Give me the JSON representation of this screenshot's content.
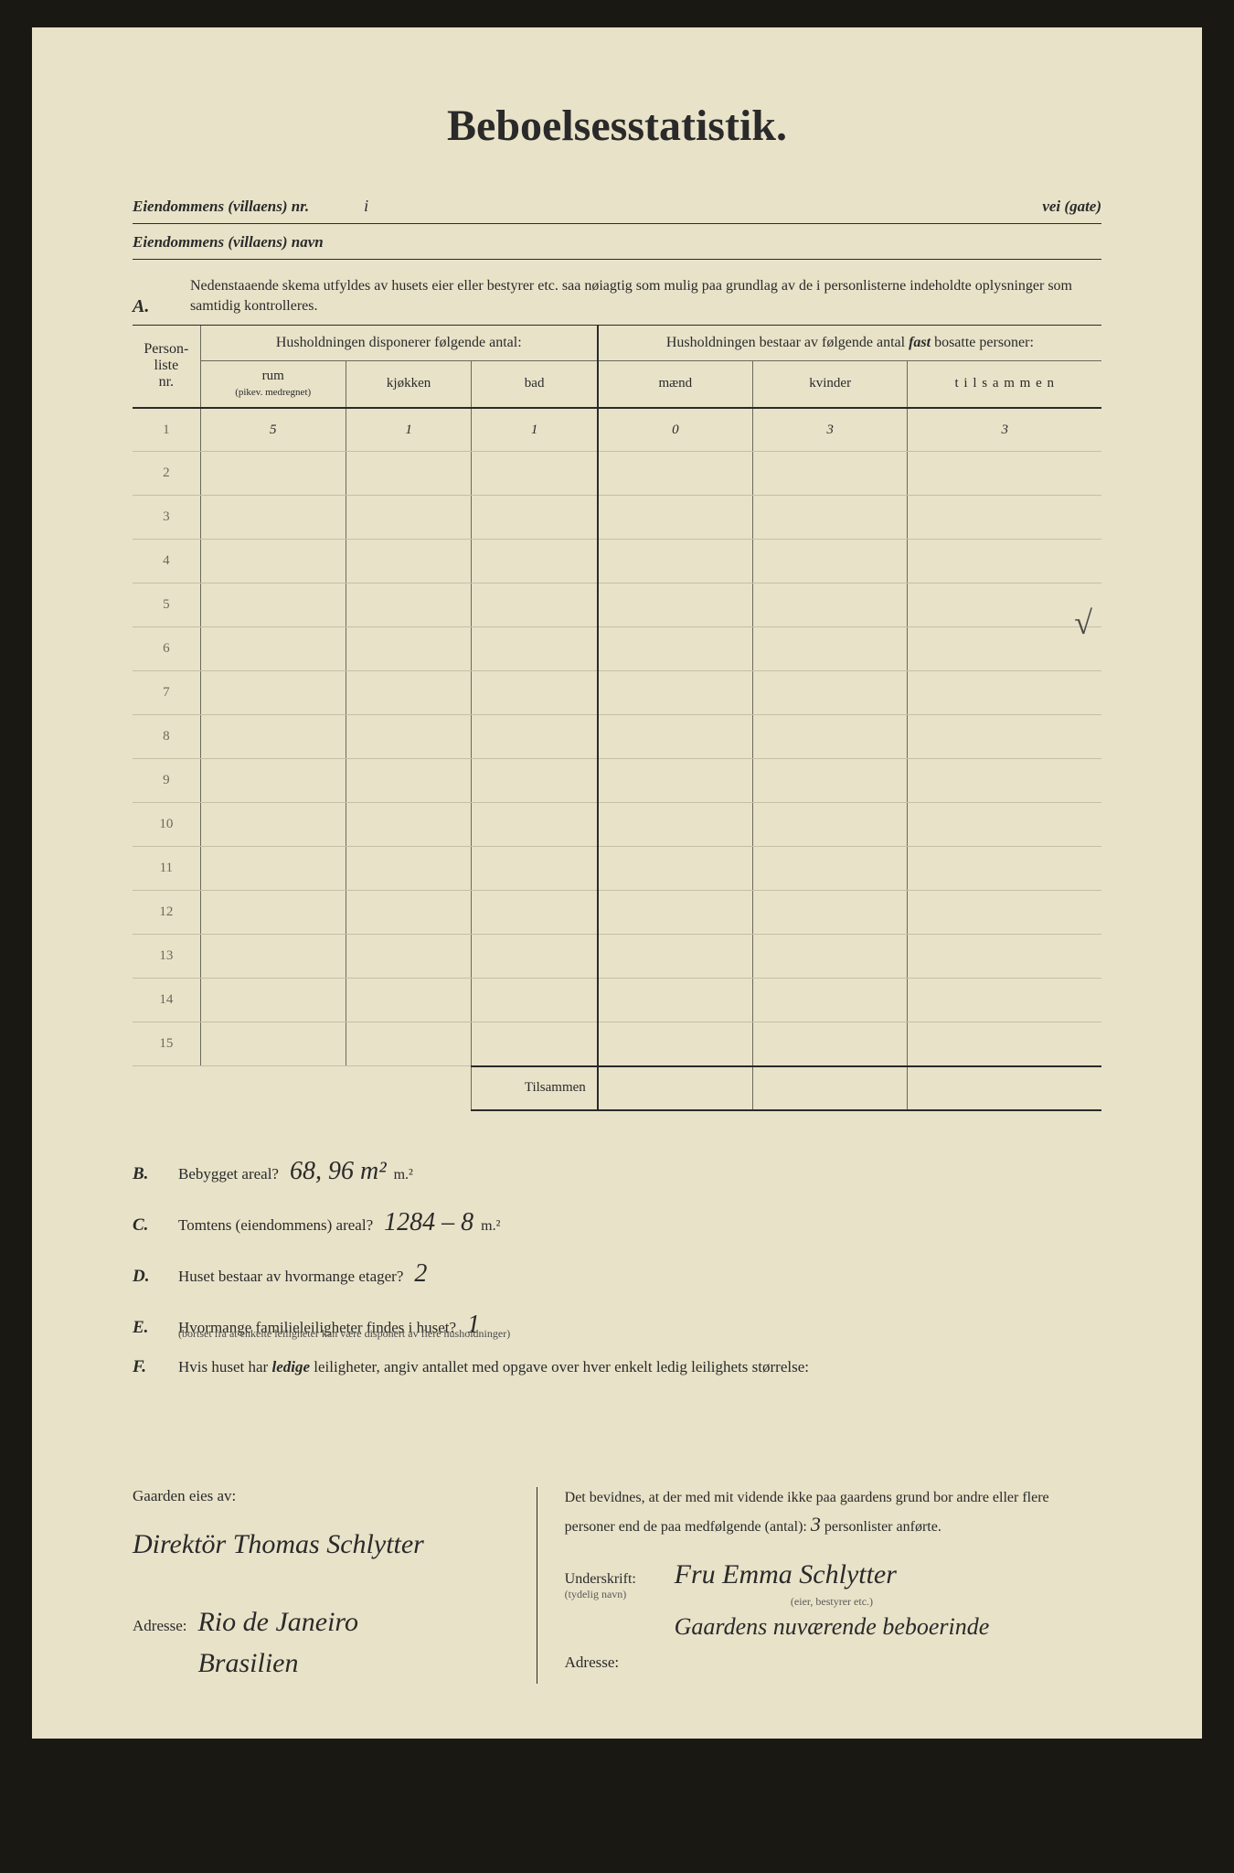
{
  "title": "Beboelsesstatistik.",
  "header": {
    "line1_label": "Eiendommens (villaens) nr.",
    "line1_value": "i",
    "line1_right": "vei (gate)",
    "line2_label": "Eiendommens (villaens) navn"
  },
  "sectionA": {
    "letter": "A.",
    "instructions": "Nedenstaaende skema utfyldes av husets eier eller bestyrer etc. saa nøiagtig som mulig paa grundlag av de i personlisterne indeholdte oplysninger som samtidig kontrolleres.",
    "col_nr_1": "Person-",
    "col_nr_2": "liste",
    "col_nr_3": "nr.",
    "group1": "Husholdningen disponerer følgende antal:",
    "group2_pre": "Husholdningen bestaar av følgende antal ",
    "group2_fast": "fast",
    "group2_post": " bosatte personer:",
    "col_rum": "rum",
    "col_rum_sub": "(pikev. medregnet)",
    "col_kjokken": "kjøkken",
    "col_bad": "bad",
    "col_maend": "mænd",
    "col_kvinder": "kvinder",
    "col_tilsammen": "t i l s a m m e n",
    "tilsammen_label": "Tilsammen"
  },
  "rows": [
    {
      "nr": "1",
      "rum": "5",
      "kjokken": "1",
      "bad": "1",
      "maend": "0",
      "kvinder": "3",
      "tilsammen": "3"
    },
    {
      "nr": "2",
      "rum": "",
      "kjokken": "",
      "bad": "",
      "maend": "",
      "kvinder": "",
      "tilsammen": ""
    },
    {
      "nr": "3",
      "rum": "",
      "kjokken": "",
      "bad": "",
      "maend": "",
      "kvinder": "",
      "tilsammen": ""
    },
    {
      "nr": "4",
      "rum": "",
      "kjokken": "",
      "bad": "",
      "maend": "",
      "kvinder": "",
      "tilsammen": ""
    },
    {
      "nr": "5",
      "rum": "",
      "kjokken": "",
      "bad": "",
      "maend": "",
      "kvinder": "",
      "tilsammen": ""
    },
    {
      "nr": "6",
      "rum": "",
      "kjokken": "",
      "bad": "",
      "maend": "",
      "kvinder": "",
      "tilsammen": ""
    },
    {
      "nr": "7",
      "rum": "",
      "kjokken": "",
      "bad": "",
      "maend": "",
      "kvinder": "",
      "tilsammen": ""
    },
    {
      "nr": "8",
      "rum": "",
      "kjokken": "",
      "bad": "",
      "maend": "",
      "kvinder": "",
      "tilsammen": ""
    },
    {
      "nr": "9",
      "rum": "",
      "kjokken": "",
      "bad": "",
      "maend": "",
      "kvinder": "",
      "tilsammen": ""
    },
    {
      "nr": "10",
      "rum": "",
      "kjokken": "",
      "bad": "",
      "maend": "",
      "kvinder": "",
      "tilsammen": ""
    },
    {
      "nr": "11",
      "rum": "",
      "kjokken": "",
      "bad": "",
      "maend": "",
      "kvinder": "",
      "tilsammen": ""
    },
    {
      "nr": "12",
      "rum": "",
      "kjokken": "",
      "bad": "",
      "maend": "",
      "kvinder": "",
      "tilsammen": ""
    },
    {
      "nr": "13",
      "rum": "",
      "kjokken": "",
      "bad": "",
      "maend": "",
      "kvinder": "",
      "tilsammen": ""
    },
    {
      "nr": "14",
      "rum": "",
      "kjokken": "",
      "bad": "",
      "maend": "",
      "kvinder": "",
      "tilsammen": ""
    },
    {
      "nr": "15",
      "rum": "",
      "kjokken": "",
      "bad": "",
      "maend": "",
      "kvinder": "",
      "tilsammen": ""
    }
  ],
  "questions": {
    "B": {
      "letter": "B.",
      "text": "Bebygget areal?",
      "answer": "68, 96 m²",
      "unit": "m.²"
    },
    "C": {
      "letter": "C.",
      "text": "Tomtens (eiendommens) areal?",
      "answer": "1284 –   8",
      "unit": "m.²"
    },
    "D": {
      "letter": "D.",
      "text": "Huset bestaar av hvormange etager?",
      "answer": "2",
      "unit": ""
    },
    "E": {
      "letter": "E.",
      "text": "Hvormange familieleiligheter findes i huset?",
      "answer": "1",
      "unit": "",
      "sub": "(bortset fra at enkelte leiligheter kan være disponert av flere husholdninger)"
    },
    "F": {
      "letter": "F.",
      "text_pre": "Hvis huset har ",
      "text_em": "ledige",
      "text_post": " leiligheter, angiv antallet med opgave over hver enkelt ledig leilighets størrelse:"
    }
  },
  "footer": {
    "left_label": "Gaarden eies av:",
    "owner": "Direktör Thomas Schlytter",
    "addr_label": "Adresse:",
    "owner_addr1": "Rio de Janeiro",
    "owner_addr2": "Brasilien",
    "attest_pre": "Det bevidnes, at der med mit vidende ikke paa gaardens grund bor andre eller flere personer end de paa medfølgende (antal): ",
    "attest_count": "3",
    "attest_post": " personlister anførte.",
    "sig_label": "Underskrift:",
    "sig_sub1": "(tydelig navn)",
    "sig_sub2": "(eier, bestyrer etc.)",
    "signature": "Fru Emma Schlytter",
    "sig_note": "Gaardens nuværende beboerinde",
    "right_addr_label": "Adresse:"
  },
  "checkmark": "√"
}
